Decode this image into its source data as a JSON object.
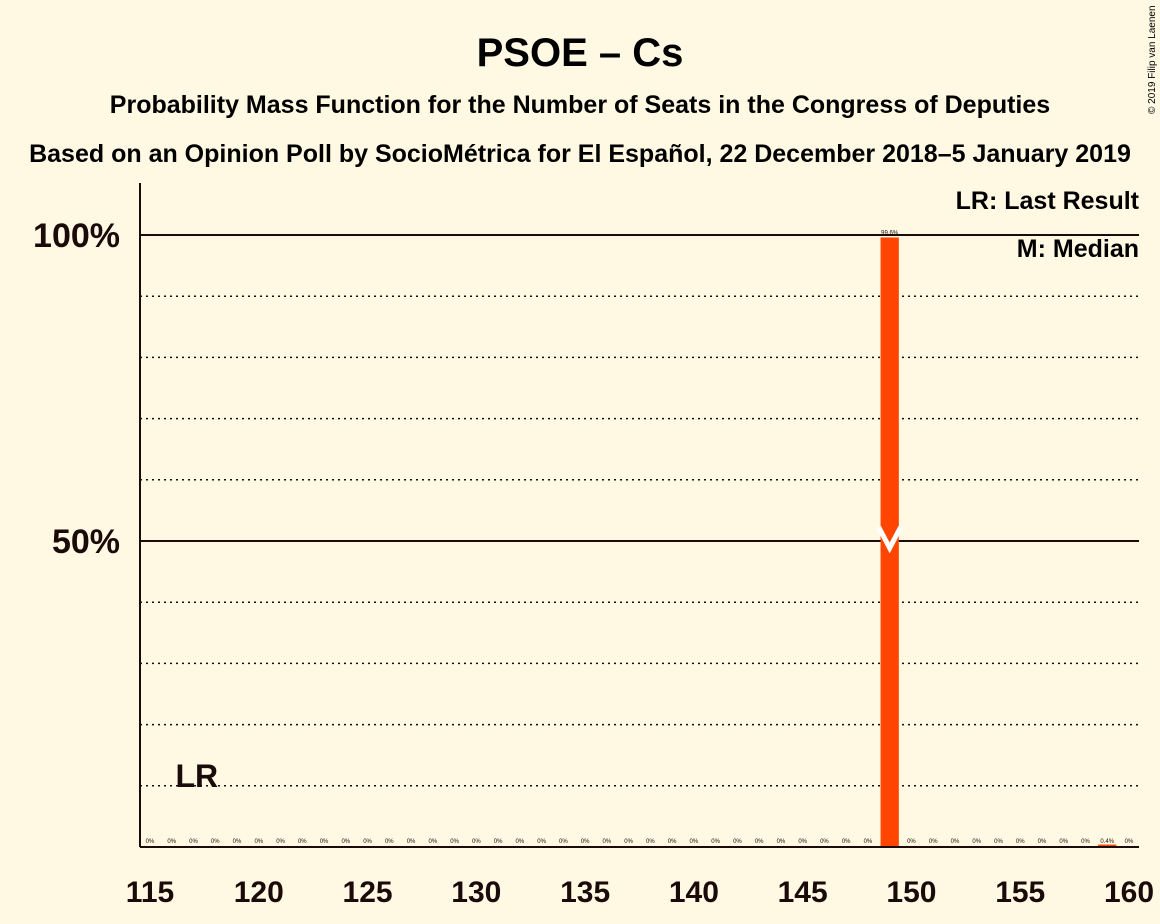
{
  "header": {
    "title": "PSOE – Cs",
    "subtitle1": "Probability Mass Function for the Number of Seats in the Congress of Deputies",
    "subtitle2": "Based on an Opinion Poll by SocioMétrica for El Español, 22 December 2018–5 January 2019"
  },
  "legend": {
    "last_result": "LR: Last Result",
    "median": "M: Median"
  },
  "copyright": "© 2019 Filip van Laenen",
  "colors": {
    "background": "#FFF8E2",
    "bar": "#FF4500",
    "text": "#1a0a0a"
  },
  "chart_data": {
    "type": "bar",
    "xlabel": "",
    "ylabel": "",
    "xlim": [
      115,
      160
    ],
    "ylim": [
      0,
      1.1
    ],
    "x_ticks": [
      "115",
      "120",
      "125",
      "130",
      "135",
      "140",
      "145",
      "150",
      "155",
      "160"
    ],
    "y_ticks": [
      {
        "value": 0.5,
        "label": "50%"
      },
      {
        "value": 1.0,
        "label": "100%"
      }
    ],
    "grid_dotted": [
      0.1,
      0.2,
      0.3,
      0.4,
      0.6,
      0.7,
      0.8,
      0.9
    ],
    "categories": [
      115,
      116,
      117,
      118,
      119,
      120,
      121,
      122,
      123,
      124,
      125,
      126,
      127,
      128,
      129,
      130,
      131,
      132,
      133,
      134,
      135,
      136,
      137,
      138,
      139,
      140,
      141,
      142,
      143,
      144,
      145,
      146,
      147,
      148,
      149,
      150,
      151,
      152,
      153,
      154,
      155,
      156,
      157,
      158,
      159,
      160
    ],
    "values": [
      0,
      0,
      0,
      0,
      0,
      0,
      0,
      0,
      0,
      0,
      0,
      0,
      0,
      0,
      0,
      0,
      0,
      0,
      0,
      0,
      0,
      0,
      0,
      0,
      0,
      0,
      0,
      0,
      0,
      0,
      0,
      0,
      0,
      0,
      0.996,
      0,
      0,
      0,
      0,
      0,
      0,
      0,
      0,
      0,
      0.004,
      0
    ],
    "data_labels": [
      "0%",
      "0%",
      "0%",
      "0%",
      "0%",
      "0%",
      "0%",
      "0%",
      "0%",
      "0%",
      "0%",
      "0%",
      "0%",
      "0%",
      "0%",
      "0%",
      "0%",
      "0%",
      "0%",
      "0%",
      "0%",
      "0%",
      "0%",
      "0%",
      "0%",
      "0%",
      "0%",
      "0%",
      "0%",
      "0%",
      "0%",
      "0%",
      "0%",
      "0%",
      "99.6%",
      "0%",
      "0%",
      "0%",
      "0%",
      "0%",
      "0%",
      "0%",
      "0%",
      "0%",
      "0.4%",
      "0%"
    ],
    "last_result": {
      "seats": 117,
      "label": "LR"
    },
    "median": {
      "seats": 149
    }
  }
}
